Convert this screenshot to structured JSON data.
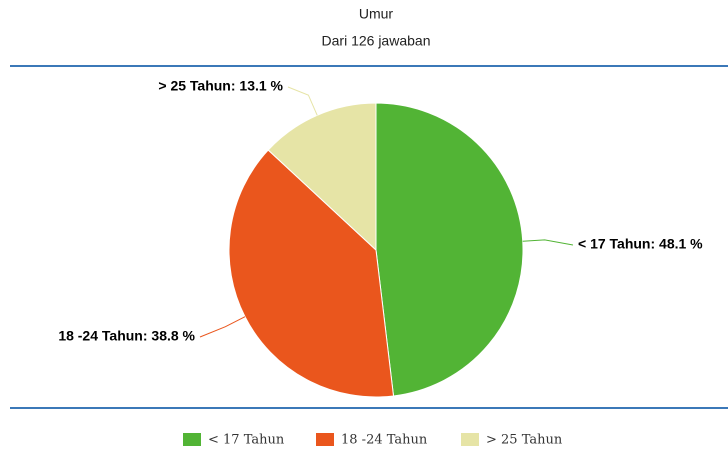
{
  "chart_data": {
    "type": "pie",
    "title": "Umur",
    "subtitle": "Dari 126 jawaban",
    "categories": [
      "< 17 Tahun",
      "18 -24 Tahun",
      "> 25 Tahun"
    ],
    "values": [
      48.1,
      38.8,
      13.1
    ],
    "value_labels": [
      "< 17 Tahun: 48.1 %",
      "18 -24 Tahun: 38.8 %",
      "> 25 Tahun: 13.1 %"
    ],
    "colors": [
      "#52b435",
      "#ea561d",
      "#e6e4a6"
    ]
  }
}
